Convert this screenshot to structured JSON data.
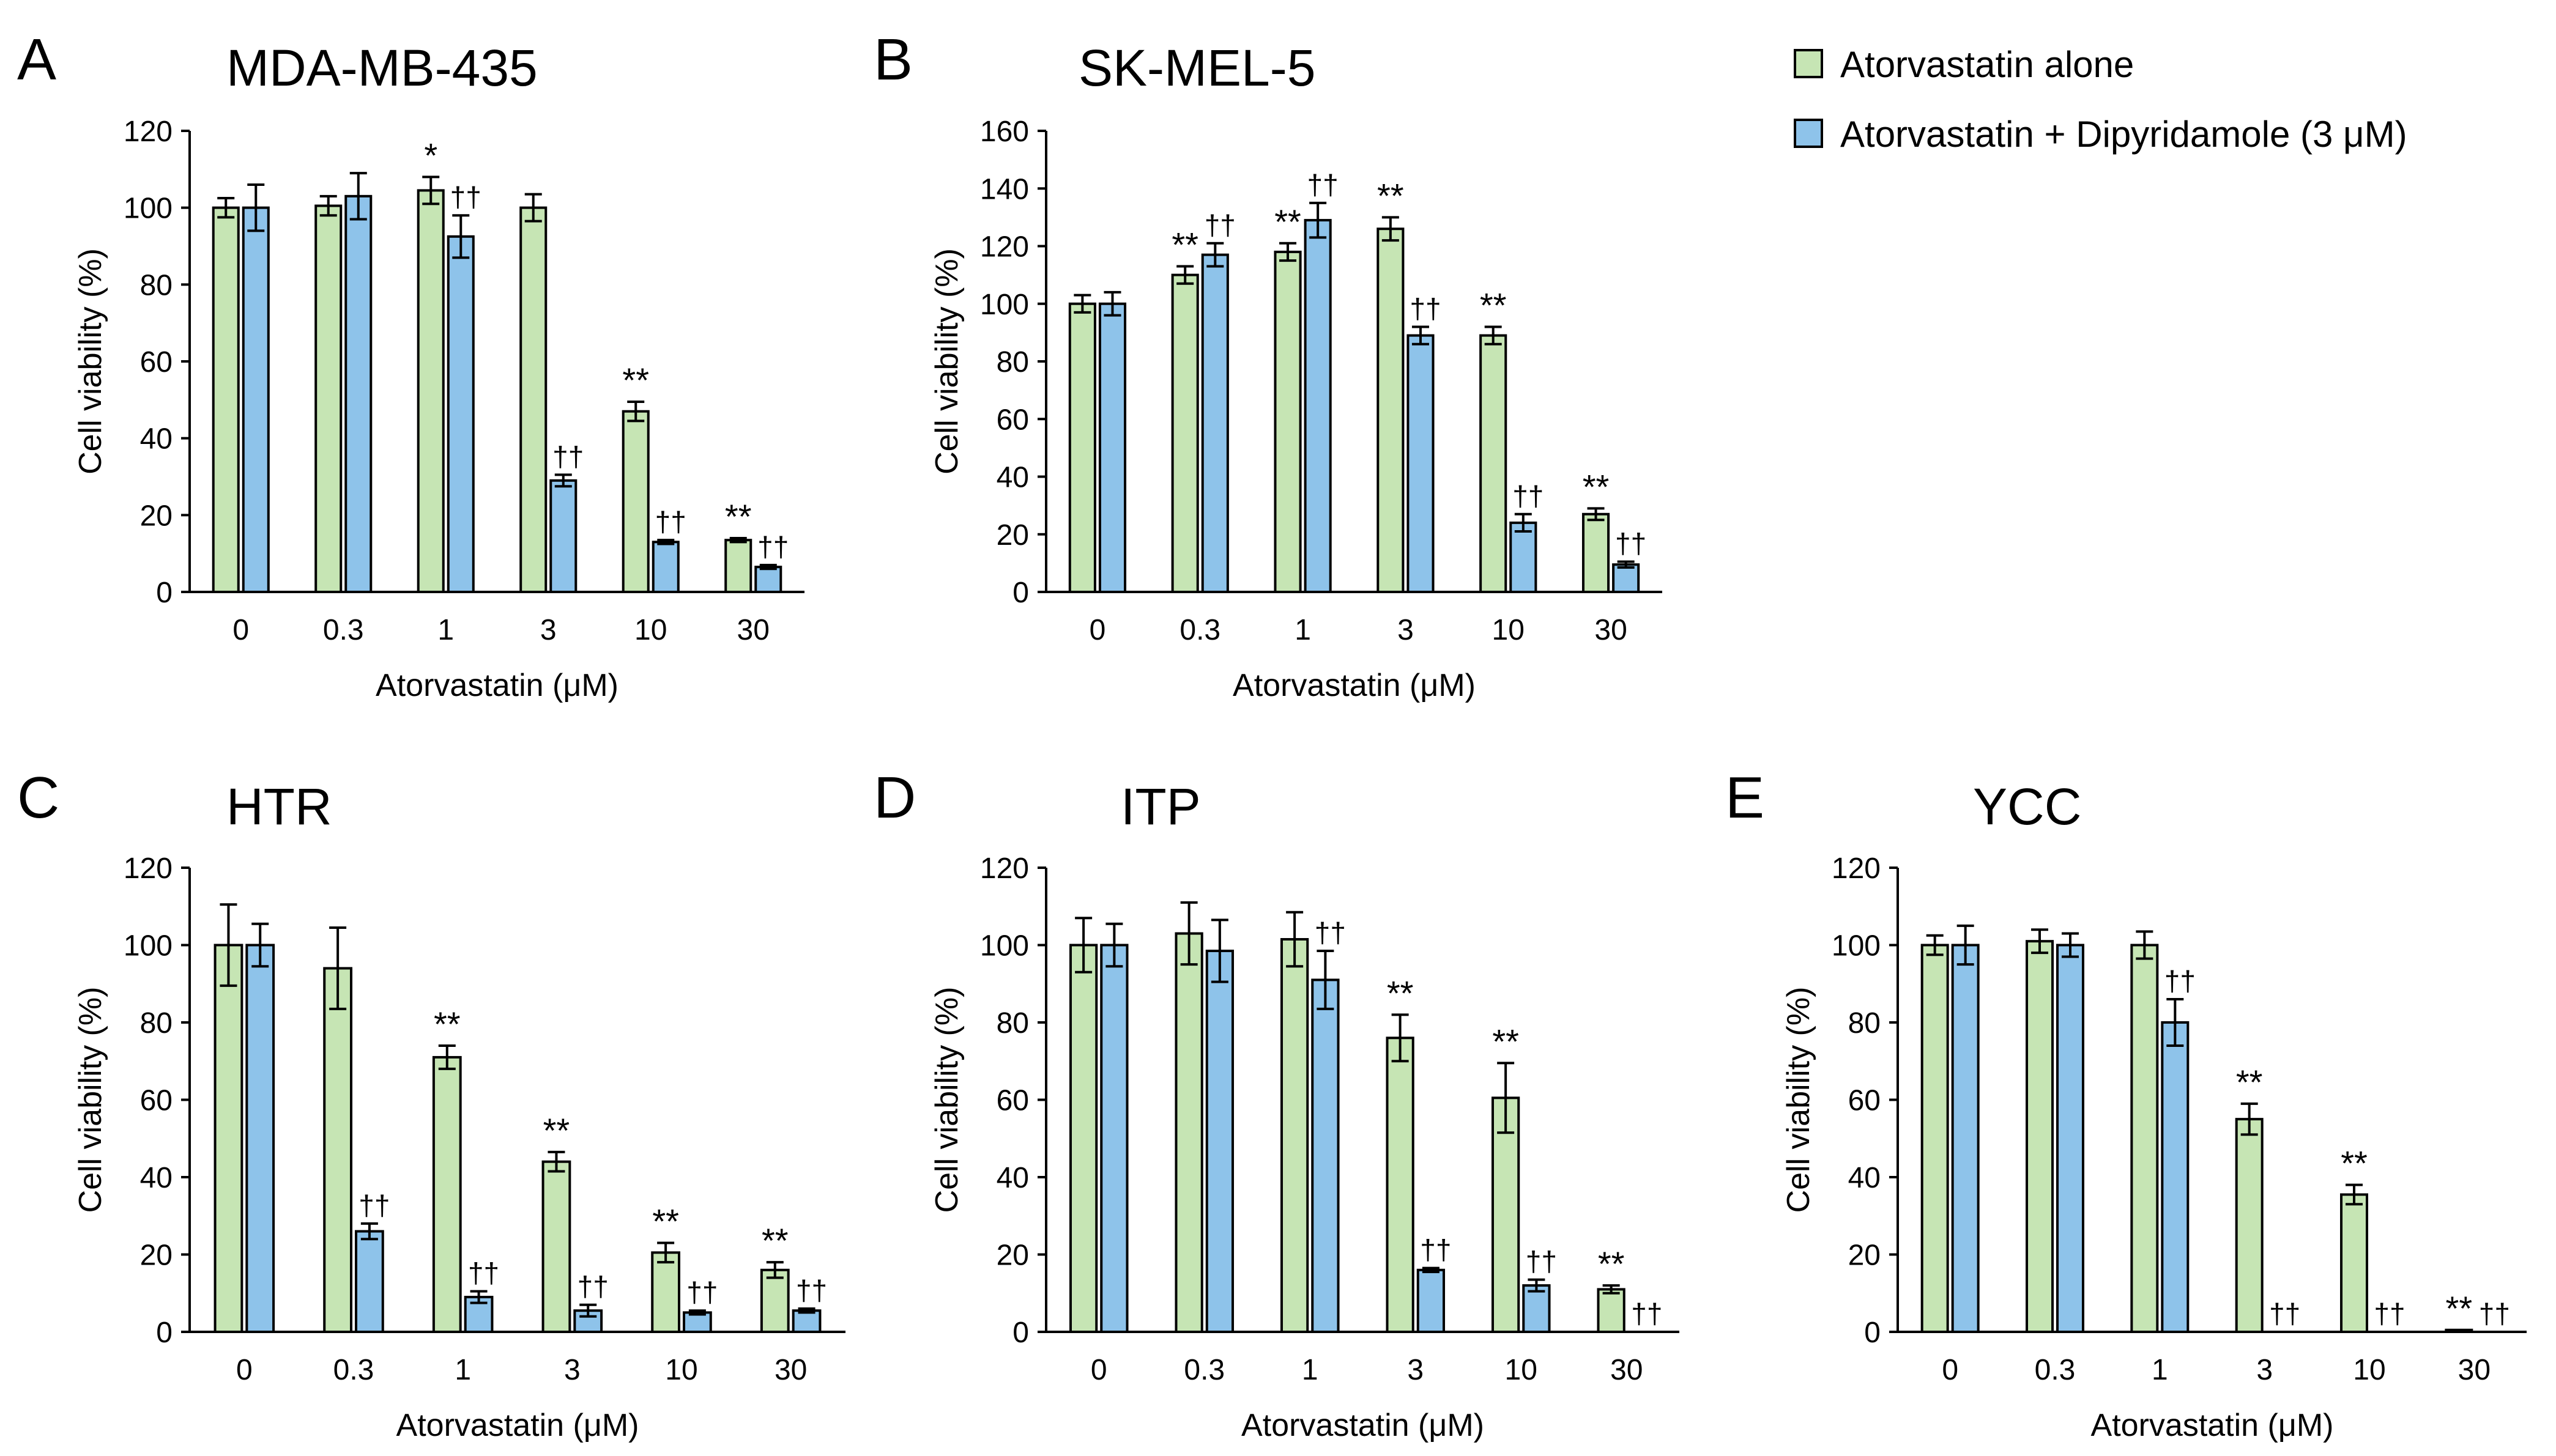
{
  "legend": [
    {
      "label": "Atorvastatin alone",
      "color": "#c6e5b4"
    },
    {
      "label": "Atorvastatin + Dipyridamole (3 μM)",
      "color": "#8ec3ea"
    }
  ],
  "chart_data": [
    {
      "panel": "A",
      "title": "MDA-MB-435",
      "type": "bar",
      "categories": [
        "0",
        "0.3",
        "1",
        "3",
        "10",
        "30"
      ],
      "xlabel": "Atorvastatin (μM)",
      "ylabel": "Cell viability (%)",
      "ylim": [
        0,
        120
      ],
      "yticks": [
        "0",
        "20",
        "40",
        "60",
        "80",
        "100",
        "120"
      ],
      "series": [
        {
          "name": "Atorvastatin alone",
          "values": [
            100,
            100.5,
            104.5,
            100,
            47,
            13.5
          ],
          "errors": [
            2.5,
            2.5,
            3.5,
            3.5,
            2.5,
            0.5
          ],
          "marks": [
            "",
            "",
            "*",
            "",
            "**",
            "**"
          ]
        },
        {
          "name": "Atorvastatin + Dipyridamole (3 μM)",
          "values": [
            100,
            103,
            92.5,
            29,
            13,
            6.5
          ],
          "errors": [
            6,
            6,
            5.5,
            1.5,
            0.5,
            0.5
          ],
          "marks": [
            "",
            "",
            "††",
            "††",
            "††",
            "††"
          ]
        }
      ]
    },
    {
      "panel": "B",
      "title": "SK-MEL-5",
      "type": "bar",
      "categories": [
        "0",
        "0.3",
        "1",
        "3",
        "10",
        "30"
      ],
      "xlabel": "Atorvastatin (μM)",
      "ylabel": "Cell viability (%)",
      "ylim": [
        0,
        160
      ],
      "yticks": [
        "0",
        "20",
        "40",
        "60",
        "80",
        "100",
        "120",
        "140",
        "160"
      ],
      "series": [
        {
          "name": "Atorvastatin alone",
          "values": [
            100,
            110,
            118,
            126,
            89,
            27
          ],
          "errors": [
            3,
            3,
            3,
            4,
            3,
            2
          ],
          "marks": [
            "",
            "**",
            "**",
            "**",
            "**",
            "**"
          ]
        },
        {
          "name": "Atorvastatin + Dipyridamole (3 μM)",
          "values": [
            100,
            117,
            129,
            89,
            24,
            9.5
          ],
          "errors": [
            4,
            4,
            6,
            3,
            3,
            1
          ],
          "marks": [
            "",
            "††",
            "††",
            "††",
            "††",
            "††"
          ]
        }
      ]
    },
    {
      "panel": "C",
      "title": "HTR",
      "type": "bar",
      "categories": [
        "0",
        "0.3",
        "1",
        "3",
        "10",
        "30"
      ],
      "xlabel": "Atorvastatin (μM)",
      "ylabel": "Cell viability (%)",
      "ylim": [
        0,
        120
      ],
      "yticks": [
        "0",
        "20",
        "40",
        "60",
        "80",
        "100",
        "120"
      ],
      "series": [
        {
          "name": "Atorvastatin alone",
          "values": [
            100,
            94,
            71,
            44,
            20.5,
            16
          ],
          "errors": [
            10.5,
            10.5,
            3,
            2.5,
            2.5,
            2
          ],
          "marks": [
            "",
            "",
            "**",
            "**",
            "**",
            "**"
          ]
        },
        {
          "name": "Atorvastatin + Dipyridamole (3 μM)",
          "values": [
            100,
            26,
            9,
            5.5,
            5,
            5.5
          ],
          "errors": [
            5.5,
            2,
            1.5,
            1.5,
            0.5,
            0.5
          ],
          "marks": [
            "",
            "††",
            "††",
            "††",
            "††",
            "††"
          ]
        }
      ]
    },
    {
      "panel": "D",
      "title": "ITP",
      "type": "bar",
      "categories": [
        "0",
        "0.3",
        "1",
        "3",
        "10",
        "30"
      ],
      "xlabel": "Atorvastatin (μM)",
      "ylabel": "Cell viability (%)",
      "ylim": [
        0,
        120
      ],
      "yticks": [
        "0",
        "20",
        "40",
        "60",
        "80",
        "100",
        "120"
      ],
      "series": [
        {
          "name": "Atorvastatin alone",
          "values": [
            100,
            103,
            101.5,
            76,
            60.5,
            11
          ],
          "errors": [
            7,
            8,
            7,
            6,
            9,
            1
          ],
          "marks": [
            "",
            "",
            "",
            "**",
            "**",
            "**"
          ]
        },
        {
          "name": "Atorvastatin + Dipyridamole (3 μM)",
          "values": [
            100,
            98.5,
            91,
            16,
            12,
            0
          ],
          "errors": [
            5.5,
            8,
            7.5,
            0.5,
            1.5,
            0
          ],
          "marks": [
            "",
            "",
            "††",
            "††",
            "††",
            "††"
          ]
        }
      ]
    },
    {
      "panel": "E",
      "title": "YCC",
      "type": "bar",
      "categories": [
        "0",
        "0.3",
        "1",
        "3",
        "10",
        "30"
      ],
      "xlabel": "Atorvastatin (μM)",
      "ylabel": "Cell viability (%)",
      "ylim": [
        0,
        120
      ],
      "yticks": [
        "0",
        "20",
        "40",
        "60",
        "80",
        "100",
        "120"
      ],
      "series": [
        {
          "name": "Atorvastatin alone",
          "values": [
            100,
            101,
            100,
            55,
            35.5,
            0.5
          ],
          "errors": [
            2.5,
            3,
            3.5,
            4,
            2.5,
            0
          ],
          "marks": [
            "",
            "",
            "",
            "**",
            "**",
            "**"
          ]
        },
        {
          "name": "Atorvastatin + Dipyridamole (3 μM)",
          "values": [
            100,
            100,
            80,
            0,
            0,
            0
          ],
          "errors": [
            5,
            3,
            6,
            0,
            0,
            0
          ],
          "marks": [
            "",
            "",
            "††",
            "††",
            "††",
            "††"
          ]
        }
      ]
    }
  ]
}
